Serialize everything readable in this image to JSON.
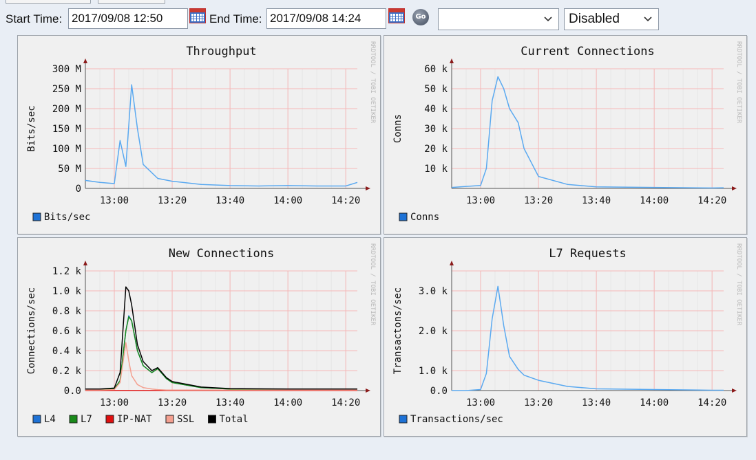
{
  "toolbar": {
    "start_label": "Start Time:",
    "start_value": "2017/09/08 12:50",
    "end_label": "End Time:",
    "end_value": "2017/09/08 14:24",
    "go_label": "Go",
    "select1_value": "",
    "select2_value": "Disabled"
  },
  "watermark": "RRDTOOL / TOBI OETIKER",
  "panels": [
    {
      "title": "Throughput",
      "ylabel": "Bits/sec",
      "yticks": [
        "300 M",
        "250 M",
        "200 M",
        "150 M",
        "100 M",
        "50 M",
        "0"
      ],
      "xticks": [
        "13:00",
        "13:20",
        "13:40",
        "14:00",
        "14:20"
      ],
      "legend": [
        {
          "name": "Bits/sec",
          "color": "#1e72d6"
        }
      ]
    },
    {
      "title": "Current Connections",
      "ylabel": "Conns",
      "yticks": [
        "60 k",
        "50 k",
        "40 k",
        "30 k",
        "20 k",
        "10 k",
        ""
      ],
      "xticks": [
        "13:00",
        "13:20",
        "13:40",
        "14:00",
        "14:20"
      ],
      "legend": [
        {
          "name": "Conns",
          "color": "#1e72d6"
        }
      ]
    },
    {
      "title": "New Connections",
      "ylabel": "Connections/sec",
      "yticks": [
        "1.2 k",
        "1.0 k",
        "0.8 k",
        "0.6 k",
        "0.4 k",
        "0.2 k",
        "0.0"
      ],
      "xticks": [
        "13:00",
        "13:20",
        "13:40",
        "14:00",
        "14:20"
      ],
      "legend": [
        {
          "name": "L4",
          "color": "#1e72d6"
        },
        {
          "name": "L7",
          "color": "#1a8a1a"
        },
        {
          "name": "IP-NAT",
          "color": "#e01010"
        },
        {
          "name": "SSL",
          "color": "#f4a090"
        },
        {
          "name": "Total",
          "color": "#000000"
        }
      ]
    },
    {
      "title": "L7 Requests",
      "ylabel": "Transactons/sec",
      "yticks": [
        "",
        "3.0 k",
        "",
        "2.0 k",
        "",
        "1.0 k",
        "0.0"
      ],
      "xticks": [
        "13:00",
        "13:20",
        "13:40",
        "14:00",
        "14:20"
      ],
      "legend": [
        {
          "name": "Transactions/sec",
          "color": "#1e72d6"
        }
      ]
    }
  ],
  "chart_data": [
    {
      "type": "line",
      "title": "Throughput",
      "ylabel": "Bits/sec",
      "ylim": [
        0,
        300000000
      ],
      "x": [
        "12:50",
        "12:55",
        "13:00",
        "13:02",
        "13:04",
        "13:06",
        "13:08",
        "13:10",
        "13:15",
        "13:20",
        "13:30",
        "13:40",
        "13:50",
        "14:00",
        "14:10",
        "14:20",
        "14:24"
      ],
      "series": [
        {
          "name": "Bits/sec",
          "color": "#5aa9f0",
          "values": [
            20000000,
            15000000,
            12000000,
            120000000,
            55000000,
            260000000,
            150000000,
            60000000,
            25000000,
            18000000,
            10000000,
            7000000,
            6000000,
            7000000,
            6000000,
            6000000,
            15000000
          ]
        }
      ]
    },
    {
      "type": "line",
      "title": "Current Connections",
      "ylabel": "Conns",
      "ylim": [
        0,
        60000
      ],
      "x": [
        "12:50",
        "12:55",
        "13:00",
        "13:02",
        "13:04",
        "13:06",
        "13:08",
        "13:10",
        "13:13",
        "13:15",
        "13:20",
        "13:30",
        "13:40",
        "14:00",
        "14:20",
        "14:24"
      ],
      "series": [
        {
          "name": "Conns",
          "color": "#5aa9f0",
          "values": [
            500,
            1000,
            1500,
            10000,
            44000,
            56000,
            50000,
            40000,
            33000,
            20000,
            6000,
            2000,
            800,
            500,
            200,
            300
          ]
        }
      ]
    },
    {
      "type": "line",
      "title": "New Connections",
      "ylabel": "Connections/sec",
      "ylim": [
        0,
        1200
      ],
      "x": [
        "12:50",
        "12:55",
        "13:00",
        "13:02",
        "13:04",
        "13:05",
        "13:06",
        "13:08",
        "13:10",
        "13:13",
        "13:15",
        "13:18",
        "13:20",
        "13:30",
        "13:40",
        "14:00",
        "14:20",
        "14:24"
      ],
      "series": [
        {
          "name": "L4",
          "color": "#1e72d6",
          "values": [
            10,
            10,
            15,
            100,
            600,
            750,
            700,
            400,
            250,
            180,
            220,
            120,
            80,
            30,
            15,
            10,
            10,
            10
          ]
        },
        {
          "name": "L7",
          "color": "#1a8a1a",
          "values": [
            10,
            10,
            15,
            100,
            600,
            740,
            700,
            400,
            250,
            180,
            220,
            120,
            80,
            30,
            15,
            10,
            10,
            10
          ]
        },
        {
          "name": "IP-NAT",
          "color": "#e01010",
          "values": [
            0,
            0,
            0,
            0,
            0,
            0,
            0,
            0,
            0,
            0,
            0,
            0,
            0,
            0,
            0,
            0,
            0,
            0
          ]
        },
        {
          "name": "SSL",
          "color": "#f4a090",
          "values": [
            5,
            5,
            10,
            80,
            480,
            300,
            150,
            60,
            30,
            15,
            10,
            5,
            5,
            5,
            5,
            5,
            5,
            5
          ]
        },
        {
          "name": "Total",
          "color": "#000000",
          "values": [
            15,
            15,
            25,
            180,
            1040,
            1000,
            860,
            460,
            290,
            200,
            230,
            130,
            90,
            35,
            20,
            15,
            15,
            15
          ]
        }
      ]
    },
    {
      "type": "line",
      "title": "L7 Requests",
      "ylabel": "Transactons/sec",
      "ylim": [
        0,
        3500
      ],
      "x": [
        "12:50",
        "12:55",
        "13:00",
        "13:02",
        "13:04",
        "13:06",
        "13:08",
        "13:10",
        "13:13",
        "13:15",
        "13:20",
        "13:30",
        "13:40",
        "14:00",
        "14:20",
        "14:24"
      ],
      "series": [
        {
          "name": "Transactions/sec",
          "color": "#5aa9f0",
          "values": [
            0,
            0,
            30,
            500,
            2100,
            3050,
            1900,
            1000,
            620,
            450,
            300,
            120,
            50,
            30,
            10,
            10
          ]
        }
      ]
    }
  ]
}
